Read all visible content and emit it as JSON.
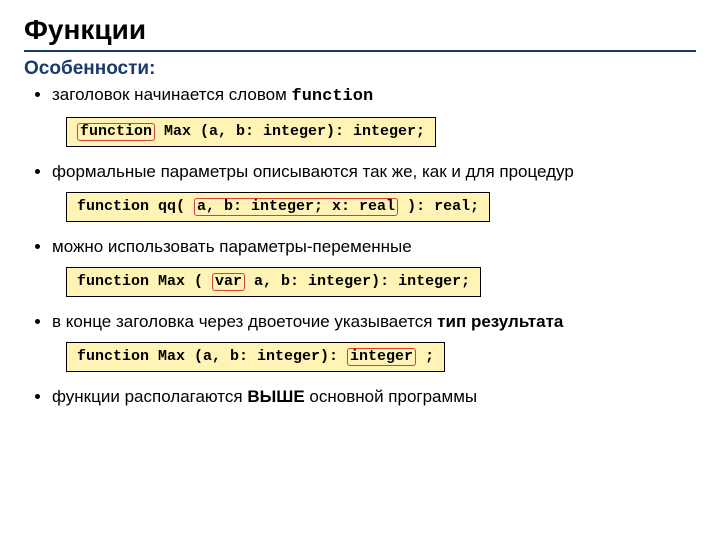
{
  "title": "Функции",
  "subtitle": "Особенности:",
  "bullets": {
    "b1_pre": "заголовок начинается словом ",
    "b1_kw": "function",
    "b2": "формальные параметры описываются так же, как и для процедур",
    "b3": "можно использовать параметры-переменные",
    "b4_pre": "в конце заголовка через двоеточие указывается ",
    "b4_bold": "тип результата",
    "b5_pre": "функции располагаются ",
    "b5_bold": "ВЫШЕ",
    "b5_post": " основной программы"
  },
  "code": {
    "c1_hl": "function",
    "c1_rest": " Max (a, b: integer): integer;",
    "c2_pre": "function qq( ",
    "c2_hl": "a, b: integer; x: real",
    "c2_post": " ): real;",
    "c3_pre": "function Max ( ",
    "c3_hl": "var",
    "c3_post": " a, b: integer): integer;",
    "c4_pre": "function Max (a, b: integer): ",
    "c4_hl": "integer",
    "c4_post": " ;"
  },
  "colors": {
    "title_rule": "#1a3a6e",
    "subtitle_color": "#1a3a6e",
    "code_bg": "#fff4b5",
    "code_border": "#000000",
    "highlight_border": "#d04040",
    "text": "#000000",
    "background": "#ffffff"
  },
  "fonts": {
    "title_pt": 28,
    "subtitle_pt": 19,
    "body_pt": 17,
    "code_pt": 15,
    "body_family": "Arial",
    "code_family": "Courier New"
  }
}
